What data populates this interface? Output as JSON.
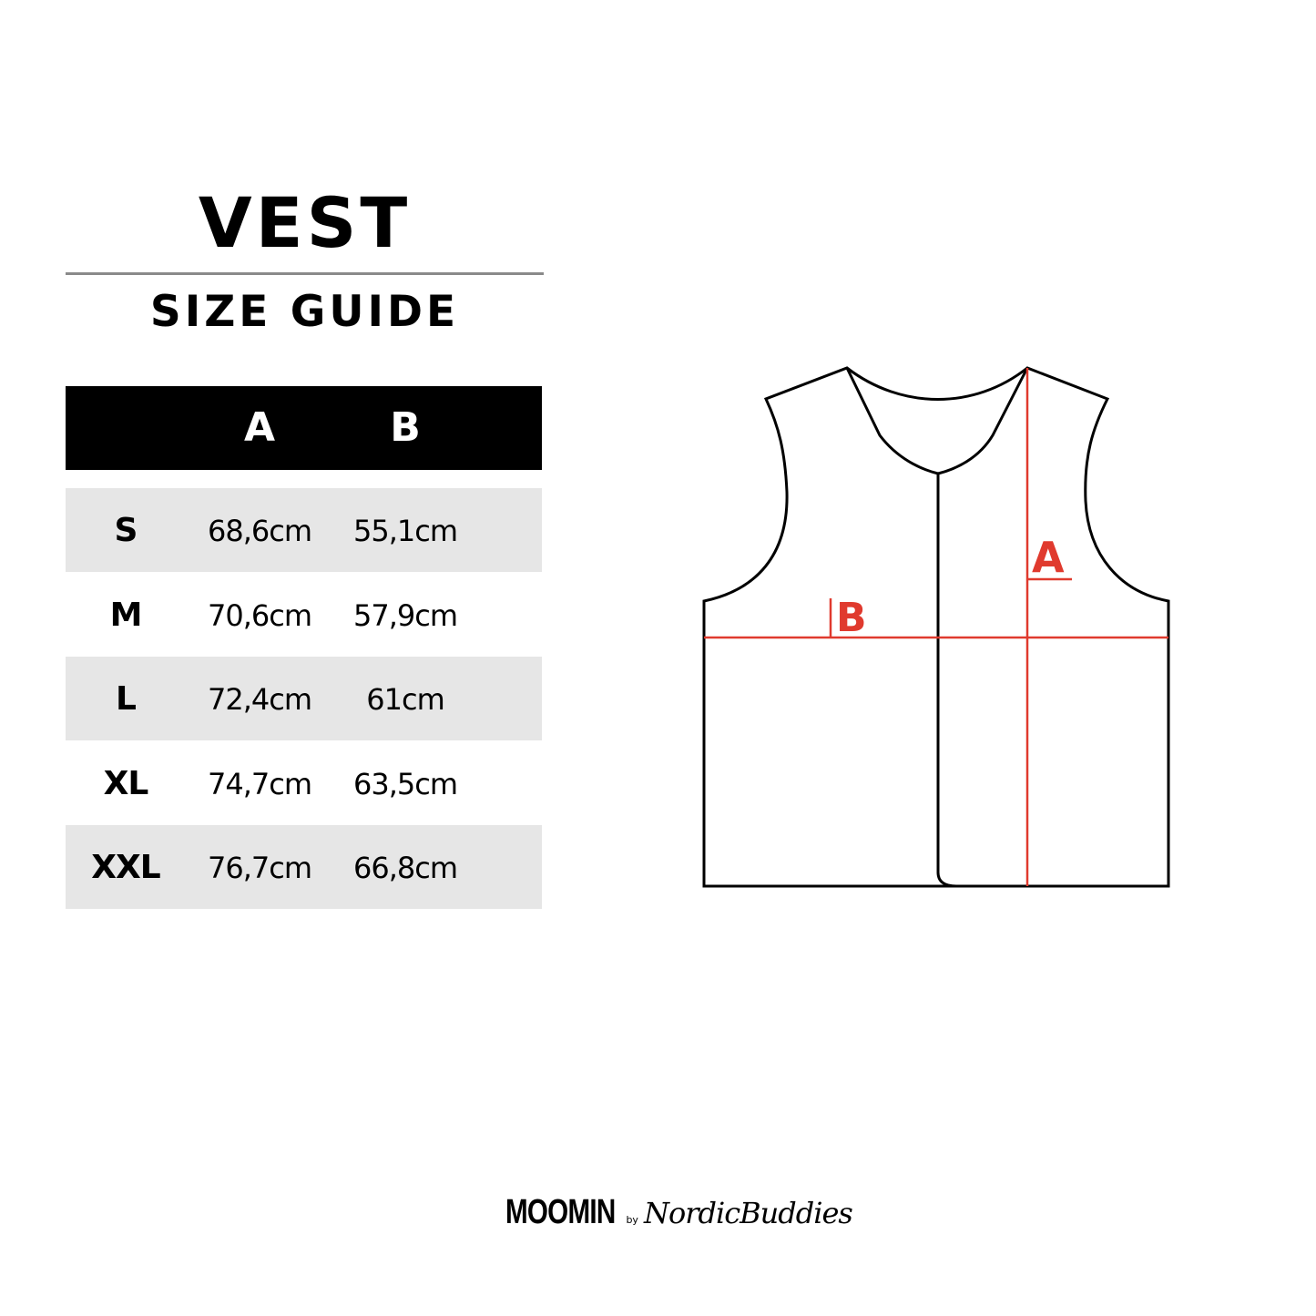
{
  "title": "VEST",
  "subtitle": "SIZE GUIDE",
  "table": {
    "headers": [
      "",
      "A",
      "B"
    ],
    "rows": [
      {
        "size": "S",
        "a": "68,6cm",
        "b": "55,1cm"
      },
      {
        "size": "M",
        "a": "70,6cm",
        "b": "57,9cm"
      },
      {
        "size": "L",
        "a": "72,4cm",
        "b": "61cm"
      },
      {
        "size": "XL",
        "a": "74,7cm",
        "b": "63,5cm"
      },
      {
        "size": "XXL",
        "a": "76,7cm",
        "b": "66,8cm"
      }
    ]
  },
  "diagram": {
    "label_a": "A",
    "label_b": "B",
    "measure_color": "#e03a2e"
  },
  "brand": {
    "primary": "MOOMIN",
    "by": "by",
    "secondary": "NordicBuddies"
  }
}
